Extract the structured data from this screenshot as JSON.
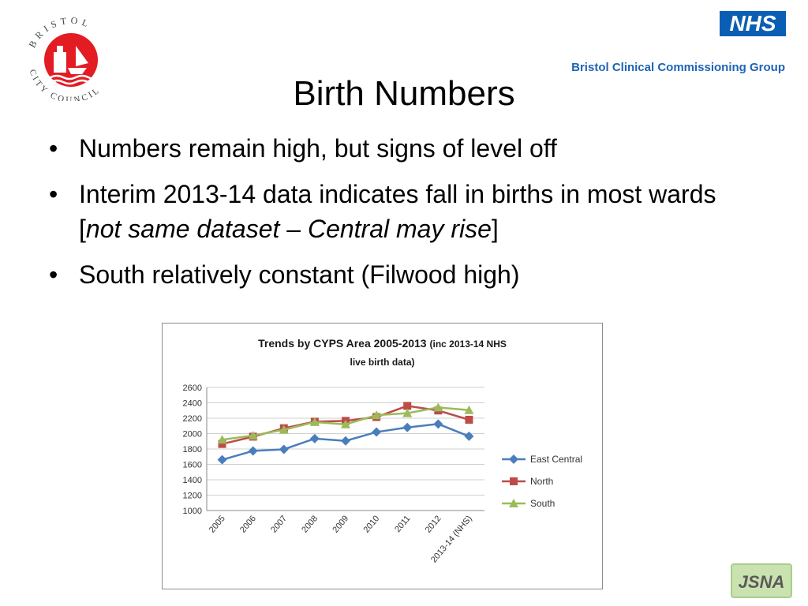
{
  "logo_left": {
    "text": "BRISTOL CITY COUNCIL"
  },
  "logo_right": {
    "nhs": "NHS",
    "ccg": "Bristol Clinical Commissioning Group"
  },
  "slide": {
    "title": "Birth Numbers",
    "bullets": [
      {
        "text": "Numbers remain high, but signs of level off"
      },
      {
        "text": "Interim 2013-14 data indicates fall in births in most wards [",
        "italic": "not same dataset – Central may rise",
        "after": "]"
      },
      {
        "text": "South relatively constant (Filwood high)"
      }
    ]
  },
  "chart_data": {
    "type": "line",
    "title": "Trends by CYPS Area 2005-2013",
    "title_note": "(inc 2013-14 NHS",
    "title_line2": "live birth data)",
    "categories": [
      "2005",
      "2006",
      "2007",
      "2008",
      "2009",
      "2010",
      "2011",
      "2012",
      "2013-14 (NHS)"
    ],
    "ylim": [
      1000,
      2600
    ],
    "yticks": [
      1000,
      1200,
      1400,
      1600,
      1800,
      2000,
      2200,
      2400,
      2600
    ],
    "grid": true,
    "legend": "right",
    "series": [
      {
        "name": "East Central",
        "color": "#4a7ebb",
        "marker": "diamond",
        "values": [
          1660,
          1775,
          1795,
          1935,
          1905,
          2020,
          2080,
          2125,
          1965
        ]
      },
      {
        "name": "North",
        "color": "#be4b48",
        "marker": "square",
        "values": [
          1865,
          1960,
          2070,
          2155,
          2165,
          2215,
          2360,
          2300,
          2180
        ]
      },
      {
        "name": "South",
        "color": "#9bbb59",
        "marker": "triangle",
        "values": [
          1920,
          1975,
          2050,
          2150,
          2120,
          2240,
          2265,
          2340,
          2305
        ]
      }
    ]
  },
  "footer": {
    "badge": "JSNA"
  }
}
